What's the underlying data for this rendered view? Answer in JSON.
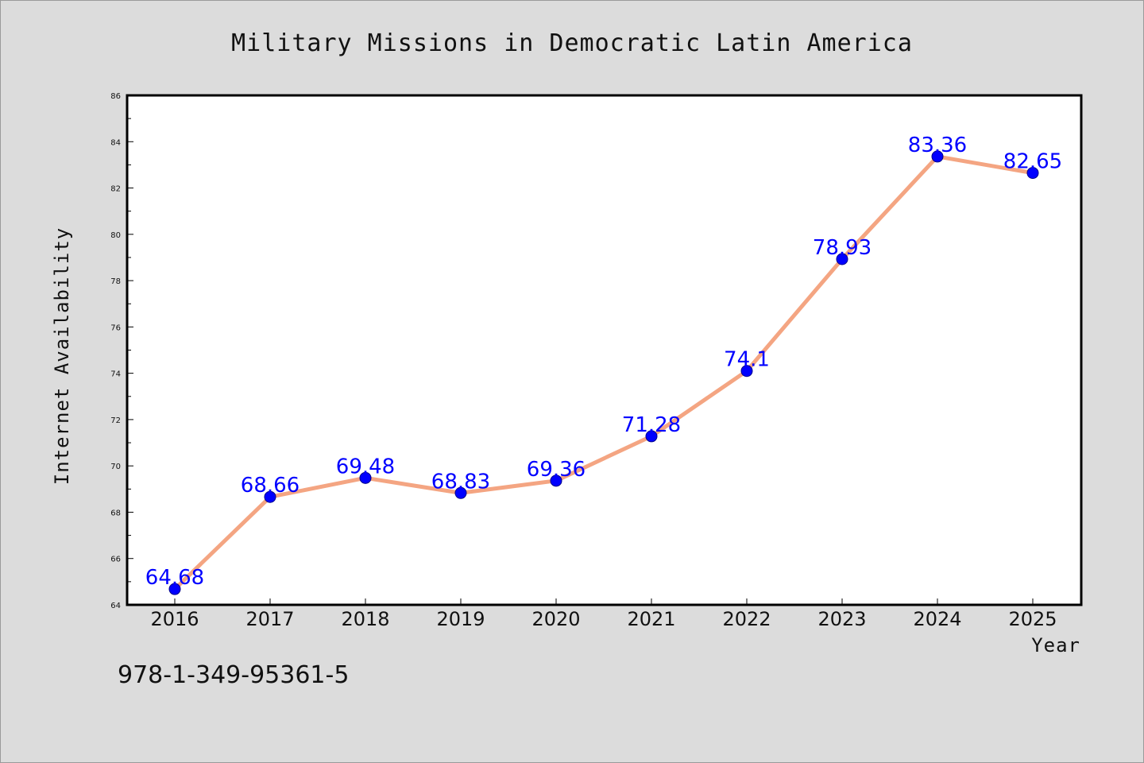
{
  "chart_data": {
    "type": "line",
    "title": "Military Missions in Democratic Latin America",
    "xlabel": "Year",
    "ylabel": "Internet Availability",
    "categories": [
      "2016",
      "2017",
      "2018",
      "2019",
      "2020",
      "2021",
      "2022",
      "2023",
      "2024",
      "2025"
    ],
    "values": [
      64.68,
      68.66,
      69.48,
      68.83,
      69.36,
      71.28,
      74.1,
      78.93,
      83.36,
      82.65
    ],
    "data_labels": [
      "64.68",
      "68.66",
      "69.48",
      "68.83",
      "69.36",
      "71.28",
      "74.1",
      "78.93",
      "83.36",
      "82.65"
    ],
    "ylim": [
      64,
      86
    ],
    "yticks": [
      "64",
      "66",
      "68",
      "70",
      "72",
      "74",
      "76",
      "78",
      "80",
      "82",
      "84",
      "86"
    ],
    "grid": false,
    "legend": "none",
    "line_color": "#f4a582",
    "marker_color": "#0000ff",
    "label_color": "#0000ff"
  },
  "footnote": "978-1-349-95361-5"
}
